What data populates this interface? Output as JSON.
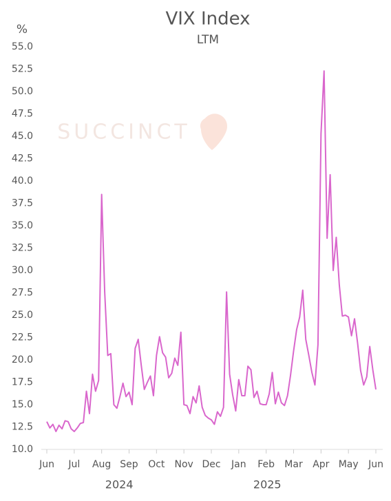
{
  "chart_data": {
    "type": "line",
    "title": "VIX Index",
    "subtitle": "LTM",
    "y_label": "%",
    "watermark": "SUCCINCT",
    "categories": [
      "Jun",
      null,
      null,
      null,
      null,
      null,
      null,
      null,
      null,
      "Jul",
      null,
      null,
      null,
      null,
      null,
      null,
      null,
      null,
      "Aug",
      null,
      null,
      null,
      null,
      null,
      null,
      null,
      null,
      "Sep",
      null,
      null,
      null,
      null,
      null,
      null,
      null,
      null,
      "Oct",
      null,
      null,
      null,
      null,
      null,
      null,
      null,
      null,
      "Nov",
      null,
      null,
      null,
      null,
      null,
      null,
      null,
      null,
      "Dec",
      null,
      null,
      null,
      null,
      null,
      null,
      null,
      null,
      "Jan",
      null,
      null,
      null,
      null,
      null,
      null,
      null,
      null,
      "Feb",
      null,
      null,
      null,
      null,
      null,
      null,
      null,
      null,
      "Mar",
      null,
      null,
      null,
      null,
      null,
      null,
      null,
      null,
      "Apr",
      null,
      null,
      null,
      null,
      null,
      null,
      null,
      null,
      "May",
      null,
      null,
      null,
      null,
      null,
      null,
      null,
      null,
      "Jun"
    ],
    "year_labels": [
      "2024",
      "2025"
    ],
    "series": [
      {
        "name": "VIX Index",
        "color": "#d966cc",
        "values": [
          13.1,
          12.4,
          12.8,
          12.0,
          12.7,
          12.3,
          13.2,
          13.1,
          12.3,
          12.0,
          12.4,
          12.9,
          13.0,
          16.5,
          14.0,
          18.4,
          16.5,
          17.7,
          38.5,
          27.6,
          20.5,
          20.7,
          15.0,
          14.6,
          15.9,
          17.4,
          15.9,
          16.4,
          15.0,
          21.3,
          22.3,
          19.4,
          16.7,
          17.5,
          18.2,
          16.0,
          20.5,
          22.6,
          20.8,
          20.3,
          18.0,
          18.5,
          20.2,
          19.4,
          23.1,
          15.0,
          14.9,
          14.0,
          15.9,
          15.2,
          17.1,
          14.7,
          13.8,
          13.5,
          13.3,
          12.8,
          14.2,
          13.7,
          14.7,
          27.6,
          18.4,
          16.1,
          14.3,
          17.8,
          16.0,
          16.0,
          19.3,
          18.9,
          15.8,
          16.5,
          15.1,
          15.0,
          15.0,
          16.2,
          18.6,
          15.1,
          16.4,
          15.2,
          14.9,
          16.0,
          18.3,
          21.0,
          23.4,
          24.8,
          27.8,
          22.3,
          20.5,
          18.6,
          17.2,
          21.7,
          45.3,
          52.3,
          33.6,
          40.7,
          30.0,
          33.7,
          28.4,
          24.9,
          25.0,
          24.8,
          22.7,
          24.6,
          21.9,
          18.8,
          17.2,
          18.1,
          21.5,
          18.9,
          16.7
        ]
      }
    ],
    "ylim": [
      10,
      55
    ],
    "yticks": [
      {
        "value": 10,
        "label": "10.0"
      },
      12.5,
      {
        "value": 15,
        "label": "15.0"
      },
      17.5,
      {
        "value": 20,
        "label": "20.0"
      },
      22.5,
      {
        "value": 25,
        "label": "25.0"
      },
      27.5,
      {
        "value": 30,
        "label": "30.0"
      },
      32.5,
      {
        "value": 35,
        "label": "35.0"
      },
      37.5,
      {
        "value": 40,
        "label": "40.0"
      },
      42.5,
      {
        "value": 45,
        "label": "45.0"
      },
      47.5,
      {
        "value": 50,
        "label": "50.0"
      },
      52.5,
      {
        "value": 55,
        "label": "55.0"
      }
    ],
    "grid": false
  }
}
